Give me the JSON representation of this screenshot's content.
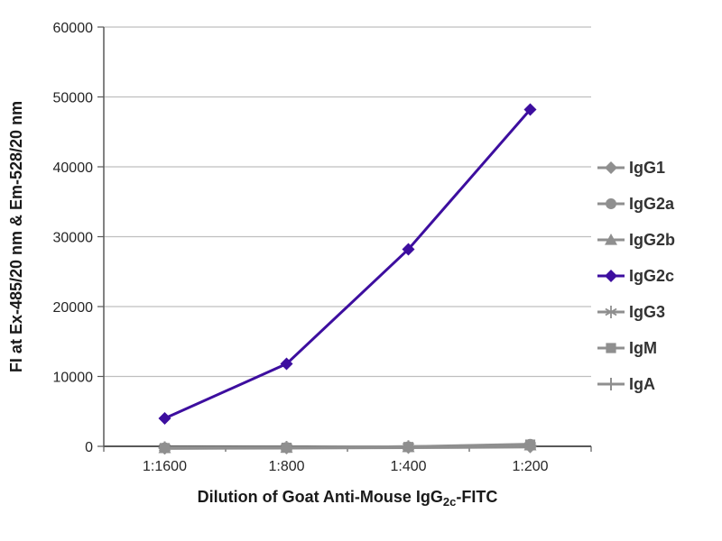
{
  "chart_data": {
    "type": "line",
    "title": "",
    "xlabel_parts": [
      {
        "t": "Dilution of Goat Anti-Mouse IgG"
      },
      {
        "t": "2c",
        "sub": true
      },
      {
        "t": "-FITC"
      }
    ],
    "xlabel": "Dilution of Goat Anti-Mouse IgG2c-FITC",
    "ylabel": "FI at Ex-485/20 nm & Em-528/20 nm",
    "categories": [
      "1:1600",
      "1:800",
      "1:400",
      "1:200"
    ],
    "ylim": [
      0,
      60000
    ],
    "ytick_step": 10000,
    "ytick_labels": [
      "0",
      "10000",
      "20000",
      "30000",
      "40000",
      "50000",
      "60000"
    ],
    "grid": true,
    "legend_position": "right",
    "colors": {
      "accent_purple": "#3d0e9f",
      "series_gray": "#8f8f8f",
      "gridline": "#bfbfbf",
      "axis": "#595959"
    },
    "series": [
      {
        "name": "IgG1",
        "marker": "diamond",
        "color": "#8f8f8f",
        "values": [
          -300,
          -250,
          -200,
          -100
        ]
      },
      {
        "name": "IgG2a",
        "marker": "circle",
        "color": "#8f8f8f",
        "values": [
          -200,
          -150,
          -50,
          300
        ]
      },
      {
        "name": "IgG2b",
        "marker": "triangle",
        "color": "#8f8f8f",
        "values": [
          -250,
          -200,
          -100,
          150
        ]
      },
      {
        "name": "IgG2c",
        "marker": "diamond",
        "color": "#3d0e9f",
        "values": [
          4000,
          11800,
          28200,
          48200
        ]
      },
      {
        "name": "IgG3",
        "marker": "asterisk",
        "color": "#8f8f8f",
        "values": [
          -200,
          -150,
          -50,
          100
        ]
      },
      {
        "name": "IgM",
        "marker": "square",
        "color": "#8f8f8f",
        "values": [
          -250,
          -200,
          -100,
          250
        ]
      },
      {
        "name": "IgA",
        "marker": "plus",
        "color": "#8f8f8f",
        "values": [
          -200,
          -150,
          -50,
          100
        ]
      }
    ]
  }
}
